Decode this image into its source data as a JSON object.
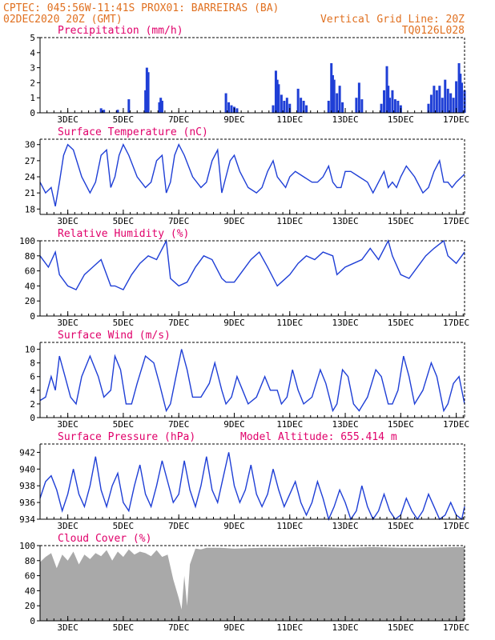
{
  "header": {
    "line1": "CPTEC:  045:56W-11:41S  PROX01: BARREIRAS (BA)",
    "line2_left": "02DEC2020 20Z (GMT)",
    "line2_right": "Vertical Grid Line: 20Z",
    "line3_right": "TQ0126L028"
  },
  "colors": {
    "header": "#e07020",
    "panel_title": "#e0006a",
    "series": "#1f3fd6",
    "cloud": "#a9a9a9",
    "axis": "#000000"
  },
  "x_axis": {
    "tick_labels": [
      "3DEC",
      "5DEC",
      "7DEC",
      "9DEC",
      "11DEC",
      "13DEC",
      "15DEC",
      "17DEC"
    ]
  },
  "chart_data": [
    {
      "id": "precip",
      "type": "bar",
      "title": "Precipitation  (mm/h)",
      "ylim": [
        0,
        5
      ],
      "yticks": [
        0,
        1,
        2,
        3,
        4,
        5
      ],
      "x": [
        4.2,
        4.3,
        4.8,
        5.2,
        5.8,
        5.85,
        5.9,
        6.3,
        6.35,
        6.4,
        8.7,
        8.8,
        8.9,
        9.0,
        9.1,
        10.4,
        10.5,
        10.55,
        10.6,
        10.7,
        10.8,
        10.9,
        11.0,
        11.3,
        11.4,
        11.5,
        11.6,
        12.4,
        12.5,
        12.55,
        12.6,
        12.7,
        12.8,
        12.9,
        13.4,
        13.5,
        13.6,
        14.3,
        14.4,
        14.5,
        14.55,
        14.6,
        14.7,
        14.8,
        14.9,
        15.0,
        16.0,
        16.1,
        16.2,
        16.3,
        16.4,
        16.5,
        16.6,
        16.7,
        16.8,
        16.9,
        17.0,
        17.1,
        17.15,
        17.2,
        17.3
      ],
      "values": [
        0.3,
        0.2,
        0.2,
        0.9,
        1.5,
        3.0,
        2.7,
        0.7,
        1.0,
        0.8,
        1.3,
        0.7,
        0.5,
        0.4,
        0.3,
        0.5,
        2.8,
        2.2,
        1.9,
        1.2,
        0.8,
        1.0,
        0.6,
        1.6,
        1.0,
        0.8,
        0.5,
        0.8,
        3.3,
        2.5,
        2.2,
        1.3,
        1.8,
        0.7,
        1.0,
        2.0,
        0.9,
        0.6,
        1.5,
        3.1,
        1.8,
        1.0,
        1.5,
        0.9,
        0.8,
        0.5,
        0.6,
        1.2,
        1.8,
        1.5,
        1.8,
        1.0,
        2.2,
        1.6,
        1.3,
        1.0,
        2.1,
        3.3,
        2.6,
        2.0,
        1.5
      ]
    },
    {
      "id": "temperature",
      "type": "line",
      "title": "Surface Temperature (nC)",
      "ylim": [
        17,
        31
      ],
      "yticks": [
        18,
        21,
        24,
        27,
        30
      ],
      "x": [
        2.0,
        2.2,
        2.4,
        2.55,
        2.7,
        2.85,
        3.0,
        3.2,
        3.5,
        3.8,
        4.0,
        4.2,
        4.4,
        4.55,
        4.7,
        4.85,
        5.0,
        5.2,
        5.5,
        5.8,
        6.0,
        6.2,
        6.4,
        6.55,
        6.7,
        6.85,
        7.0,
        7.2,
        7.5,
        7.8,
        8.0,
        8.2,
        8.4,
        8.55,
        8.7,
        8.85,
        9.0,
        9.2,
        9.5,
        9.8,
        10.0,
        10.2,
        10.4,
        10.55,
        10.7,
        10.85,
        11.0,
        11.2,
        11.5,
        11.8,
        12.0,
        12.2,
        12.4,
        12.55,
        12.7,
        12.85,
        13.0,
        13.2,
        13.5,
        13.8,
        14.0,
        14.2,
        14.4,
        14.55,
        14.7,
        14.85,
        15.0,
        15.2,
        15.5,
        15.8,
        16.0,
        16.2,
        16.4,
        16.55,
        16.7,
        16.85,
        17.0,
        17.2,
        17.3
      ],
      "values": [
        23,
        21,
        22,
        18.5,
        23,
        28,
        30,
        29,
        24,
        21,
        23,
        28,
        29,
        22,
        24,
        28,
        30,
        28,
        24,
        22,
        23,
        27,
        28,
        21,
        23,
        28,
        30,
        28,
        24,
        22,
        23,
        27,
        29,
        21,
        24,
        27,
        28,
        25,
        22,
        21,
        22,
        25,
        27,
        24,
        23,
        22,
        24,
        25,
        24,
        23,
        23,
        24,
        26,
        23,
        22,
        22,
        25,
        25,
        24,
        23,
        21,
        23,
        25,
        22,
        23,
        22,
        24,
        26,
        24,
        21,
        22,
        25,
        27,
        23,
        23,
        22,
        23,
        24,
        24.5
      ]
    },
    {
      "id": "humidity",
      "type": "line",
      "title": "Relative Humidity (%)",
      "ylim": [
        0,
        100
      ],
      "yticks": [
        0,
        20,
        40,
        60,
        80,
        100
      ],
      "x": [
        2.0,
        2.3,
        2.55,
        2.7,
        3.0,
        3.3,
        3.6,
        3.9,
        4.2,
        4.55,
        4.7,
        5.0,
        5.3,
        5.6,
        5.9,
        6.2,
        6.55,
        6.7,
        7.0,
        7.3,
        7.6,
        7.9,
        8.2,
        8.55,
        8.7,
        9.0,
        9.3,
        9.6,
        9.9,
        10.2,
        10.55,
        10.7,
        11.0,
        11.3,
        11.6,
        11.9,
        12.2,
        12.55,
        12.7,
        13.0,
        13.3,
        13.6,
        13.9,
        14.2,
        14.55,
        14.7,
        15.0,
        15.3,
        15.6,
        15.9,
        16.2,
        16.55,
        16.7,
        17.0,
        17.3
      ],
      "values": [
        80,
        65,
        85,
        55,
        40,
        35,
        55,
        65,
        75,
        40,
        40,
        35,
        55,
        70,
        80,
        75,
        100,
        50,
        40,
        45,
        65,
        80,
        75,
        50,
        45,
        45,
        60,
        75,
        85,
        65,
        40,
        45,
        55,
        70,
        80,
        75,
        85,
        80,
        55,
        65,
        70,
        75,
        90,
        75,
        100,
        80,
        55,
        50,
        65,
        80,
        90,
        100,
        80,
        70,
        85
      ]
    },
    {
      "id": "wind",
      "type": "line",
      "title": "Surface Wind (m/s)",
      "ylim": [
        0,
        11
      ],
      "yticks": [
        0,
        2,
        4,
        6,
        8,
        10
      ],
      "x": [
        2.0,
        2.2,
        2.4,
        2.55,
        2.7,
        2.9,
        3.1,
        3.3,
        3.5,
        3.8,
        4.1,
        4.3,
        4.55,
        4.7,
        4.9,
        5.1,
        5.3,
        5.5,
        5.8,
        6.1,
        6.3,
        6.55,
        6.7,
        6.9,
        7.1,
        7.3,
        7.5,
        7.8,
        8.1,
        8.3,
        8.55,
        8.7,
        8.9,
        9.1,
        9.3,
        9.5,
        9.8,
        10.1,
        10.3,
        10.55,
        10.7,
        10.9,
        11.1,
        11.3,
        11.5,
        11.8,
        12.1,
        12.3,
        12.55,
        12.7,
        12.9,
        13.1,
        13.3,
        13.5,
        13.8,
        14.1,
        14.3,
        14.55,
        14.7,
        14.9,
        15.1,
        15.3,
        15.5,
        15.8,
        16.1,
        16.3,
        16.55,
        16.7,
        16.9,
        17.1,
        17.3
      ],
      "values": [
        2.5,
        3,
        6,
        4,
        9,
        6,
        3,
        2,
        6,
        9,
        6,
        3,
        4,
        9,
        7,
        2,
        2,
        5,
        9,
        8,
        5,
        1,
        2,
        6,
        10,
        7,
        3,
        3,
        5,
        8,
        4,
        2,
        3,
        6,
        4,
        2,
        3,
        6,
        4,
        4,
        2,
        3,
        7,
        4,
        2,
        3,
        7,
        5,
        1,
        2,
        7,
        6,
        2,
        1,
        3,
        7,
        6,
        2,
        2,
        4,
        9,
        6,
        2,
        4,
        8,
        6,
        1,
        2,
        5,
        6,
        2
      ]
    },
    {
      "id": "pressure",
      "type": "line",
      "title": "Surface Pressure (hPa)",
      "annotation": "Model Altitude: 655.414 m",
      "ylim": [
        934,
        943
      ],
      "yticks": [
        934,
        936,
        938,
        940,
        942
      ],
      "x": [
        2.0,
        2.2,
        2.4,
        2.6,
        2.8,
        3.0,
        3.2,
        3.4,
        3.6,
        3.8,
        4.0,
        4.2,
        4.4,
        4.6,
        4.8,
        5.0,
        5.2,
        5.4,
        5.6,
        5.8,
        6.0,
        6.2,
        6.4,
        6.6,
        6.8,
        7.0,
        7.2,
        7.4,
        7.6,
        7.8,
        8.0,
        8.2,
        8.4,
        8.6,
        8.8,
        9.0,
        9.2,
        9.4,
        9.6,
        9.8,
        10.0,
        10.2,
        10.4,
        10.6,
        10.8,
        11.0,
        11.2,
        11.4,
        11.6,
        11.8,
        12.0,
        12.2,
        12.4,
        12.6,
        12.8,
        13.0,
        13.2,
        13.4,
        13.6,
        13.8,
        14.0,
        14.2,
        14.4,
        14.6,
        14.8,
        15.0,
        15.2,
        15.4,
        15.6,
        15.8,
        16.0,
        16.2,
        16.4,
        16.6,
        16.8,
        17.0,
        17.2,
        17.3
      ],
      "values": [
        936.5,
        938.5,
        939.2,
        937.5,
        935,
        937,
        940,
        937,
        935.5,
        938,
        941.5,
        937.5,
        935.5,
        938,
        939.5,
        936,
        935,
        938,
        940.5,
        937,
        935.5,
        938,
        941,
        938.5,
        936,
        937,
        941,
        937.5,
        935.5,
        938,
        941.5,
        937.5,
        936,
        939,
        942,
        938,
        936,
        937.5,
        940.5,
        937,
        935.5,
        937,
        940,
        937.5,
        935.5,
        937,
        938.5,
        936,
        934.5,
        936,
        938.5,
        936.5,
        934,
        935.5,
        937.5,
        936,
        934,
        935,
        938,
        935.5,
        934,
        935,
        937,
        935,
        934,
        934.5,
        936.5,
        935,
        934,
        935,
        937,
        935.5,
        934,
        934.5,
        936,
        934.5,
        934,
        935.5
      ]
    },
    {
      "id": "cloud",
      "type": "area",
      "title": "Cloud Cover (%)",
      "ylim": [
        0,
        100
      ],
      "yticks": [
        0,
        20,
        40,
        60,
        80,
        100
      ],
      "x": [
        2.0,
        2.2,
        2.4,
        2.6,
        2.8,
        3.0,
        3.2,
        3.4,
        3.6,
        3.8,
        4.0,
        4.2,
        4.4,
        4.6,
        4.8,
        5.0,
        5.2,
        5.4,
        5.6,
        5.8,
        6.0,
        6.2,
        6.4,
        6.6,
        6.8,
        7.0,
        7.1,
        7.2,
        7.3,
        7.4,
        7.6,
        7.8,
        8.0,
        8.5,
        9.0,
        10.0,
        11.0,
        12.0,
        13.0,
        14.0,
        15.0,
        16.0,
        17.0,
        17.3
      ],
      "values": [
        78,
        85,
        90,
        70,
        88,
        80,
        92,
        75,
        88,
        82,
        90,
        86,
        94,
        80,
        92,
        85,
        95,
        88,
        92,
        90,
        86,
        94,
        85,
        88,
        55,
        30,
        15,
        60,
        20,
        75,
        96,
        95,
        97,
        97,
        96,
        97,
        97,
        98,
        97,
        98,
        97,
        97,
        98,
        98
      ]
    }
  ]
}
